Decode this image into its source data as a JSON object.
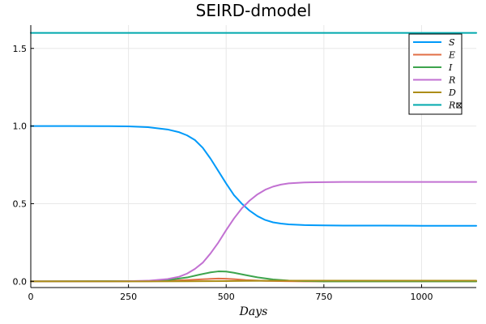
{
  "chart_data": {
    "type": "line",
    "title": "SEIRD-dmodel",
    "xlabel": "Days",
    "ylabel": "",
    "xlim": [
      0,
      1140
    ],
    "ylim": [
      -0.04,
      1.65
    ],
    "xticks": [
      0,
      250,
      500,
      750,
      1000
    ],
    "xtick_labels": [
      "0",
      "250",
      "500",
      "750",
      "1000"
    ],
    "yticks": [
      0.0,
      0.5,
      1.0,
      1.5
    ],
    "ytick_labels": [
      "0.0",
      "0.5",
      "1.0",
      "1.5"
    ],
    "grid": true,
    "legend_position": "top-right",
    "series": [
      {
        "name": "S",
        "color": "#009af9",
        "x": [
          0,
          100,
          200,
          250,
          300,
          350,
          380,
          400,
          420,
          440,
          460,
          480,
          500,
          520,
          540,
          560,
          580,
          600,
          620,
          640,
          660,
          700,
          750,
          800,
          900,
          1000,
          1140
        ],
        "y": [
          1.0,
          1.0,
          0.999,
          0.998,
          0.993,
          0.978,
          0.96,
          0.94,
          0.91,
          0.86,
          0.79,
          0.71,
          0.63,
          0.555,
          0.5,
          0.455,
          0.42,
          0.395,
          0.38,
          0.372,
          0.367,
          0.362,
          0.36,
          0.359,
          0.359,
          0.358,
          0.358
        ]
      },
      {
        "name": "E",
        "color": "#e26f46",
        "x": [
          0,
          300,
          350,
          400,
          430,
          460,
          480,
          500,
          520,
          550,
          600,
          650,
          700,
          1140
        ],
        "y": [
          0.0,
          0.001,
          0.003,
          0.008,
          0.012,
          0.016,
          0.018,
          0.017,
          0.014,
          0.008,
          0.003,
          0.001,
          0.0,
          0.0
        ]
      },
      {
        "name": "I",
        "color": "#3da44d",
        "x": [
          0,
          300,
          350,
          400,
          430,
          460,
          480,
          500,
          520,
          550,
          580,
          620,
          660,
          700,
          750,
          1140
        ],
        "y": [
          0.0,
          0.002,
          0.008,
          0.025,
          0.042,
          0.058,
          0.064,
          0.063,
          0.055,
          0.04,
          0.026,
          0.012,
          0.005,
          0.002,
          0.0,
          0.0
        ]
      },
      {
        "name": "R",
        "color": "#c271d2",
        "x": [
          0,
          200,
          250,
          300,
          350,
          380,
          400,
          420,
          440,
          460,
          480,
          500,
          520,
          540,
          560,
          580,
          600,
          620,
          640,
          660,
          700,
          750,
          800,
          900,
          1000,
          1140
        ],
        "y": [
          0.0,
          0.0,
          0.001,
          0.004,
          0.015,
          0.03,
          0.05,
          0.08,
          0.12,
          0.18,
          0.25,
          0.33,
          0.405,
          0.47,
          0.52,
          0.56,
          0.59,
          0.61,
          0.623,
          0.631,
          0.637,
          0.639,
          0.64,
          0.64,
          0.64,
          0.64
        ]
      },
      {
        "name": "D",
        "color": "#ac8d18",
        "x": [
          0,
          300,
          400,
          450,
          500,
          550,
          600,
          700,
          1140
        ],
        "y": [
          0.0,
          0.0,
          0.0005,
          0.001,
          0.002,
          0.003,
          0.0035,
          0.004,
          0.004
        ]
      },
      {
        "name": "R⊠",
        "color": "#00a9ad",
        "x": [
          0,
          1140
        ],
        "y": [
          1.6,
          1.6
        ]
      }
    ]
  }
}
